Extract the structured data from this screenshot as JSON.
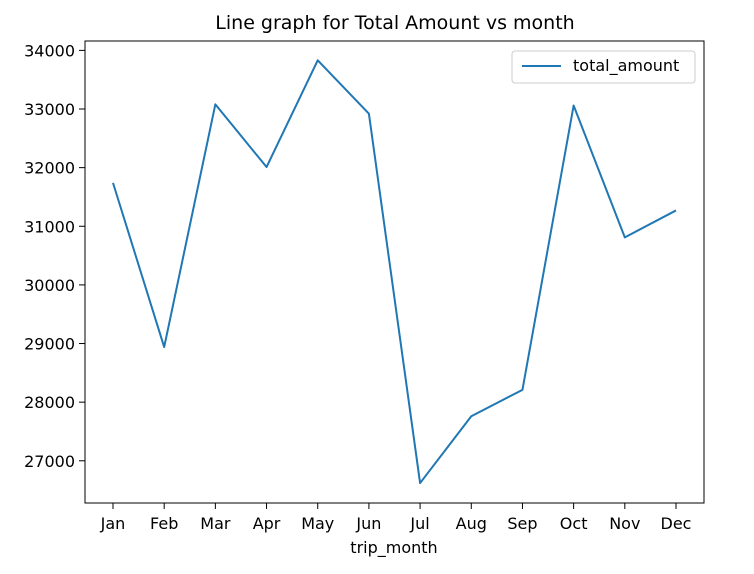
{
  "chart_data": {
    "type": "line",
    "title": "Line graph for Total Amount vs month",
    "xlabel": "trip_month",
    "ylabel": "",
    "categories": [
      "Jan",
      "Feb",
      "Mar",
      "Apr",
      "May",
      "Jun",
      "Jul",
      "Aug",
      "Sep",
      "Oct",
      "Nov",
      "Dec"
    ],
    "series": [
      {
        "name": "total_amount",
        "color": "#1f77b4",
        "values": [
          31740,
          28940,
          33080,
          32010,
          33830,
          32920,
          26620,
          27760,
          28210,
          33060,
          30810,
          31270
        ]
      }
    ],
    "ylim": [
      26280,
      34160
    ],
    "yticks": [
      27000,
      28000,
      29000,
      30000,
      31000,
      32000,
      33000,
      34000
    ],
    "grid": false,
    "legend_position": "top-right"
  }
}
